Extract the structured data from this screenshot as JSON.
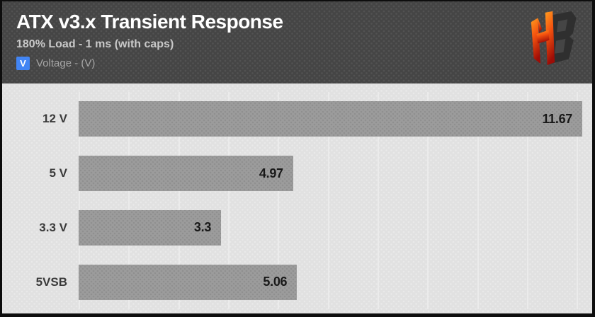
{
  "header": {
    "title": "ATX v3.x Transient Response",
    "subtitle": "180% Load - 1 ms (with caps)",
    "legend": {
      "swatch_letter": "V",
      "label": "Voltage - (V)"
    },
    "logo": "hardware-busters-hb-logo"
  },
  "colors": {
    "frame_border": "#0d0d0d",
    "header_bg": "#454545",
    "chart_bg": "#e1e1e1",
    "gridline": "#ebebeb",
    "bar_fill": "#9c9c9c",
    "title_text": "#ffffff",
    "subtitle_text": "#c9c9c9",
    "legend_text": "#a6a6a6",
    "legend_swatch": "#4285f4",
    "category_text": "#3a3a3a",
    "value_text": "#191919",
    "logo_orange": "#ff9d1f",
    "logo_red": "#9e0d07",
    "logo_dark": "#2f2f2f"
  },
  "chart_data": {
    "type": "bar",
    "orientation": "horizontal",
    "title": "ATX v3.x Transient Response",
    "subtitle": "180% Load - 1 ms (with caps)",
    "series_label": "Voltage - (V)",
    "categories": [
      "12 V",
      "5 V",
      "3.3 V",
      "5VSB"
    ],
    "values": [
      11.67,
      4.97,
      3.3,
      5.06
    ],
    "value_labels": [
      "11.67",
      "4.97",
      "3.3",
      "5.06"
    ],
    "xlabel": "",
    "ylabel": "",
    "xlim": [
      0,
      11.9
    ],
    "gridlines": {
      "count": 10,
      "step_pct": 9.7
    },
    "grid": true,
    "legend_position": "top-left",
    "value_label_position": "inside-end"
  }
}
